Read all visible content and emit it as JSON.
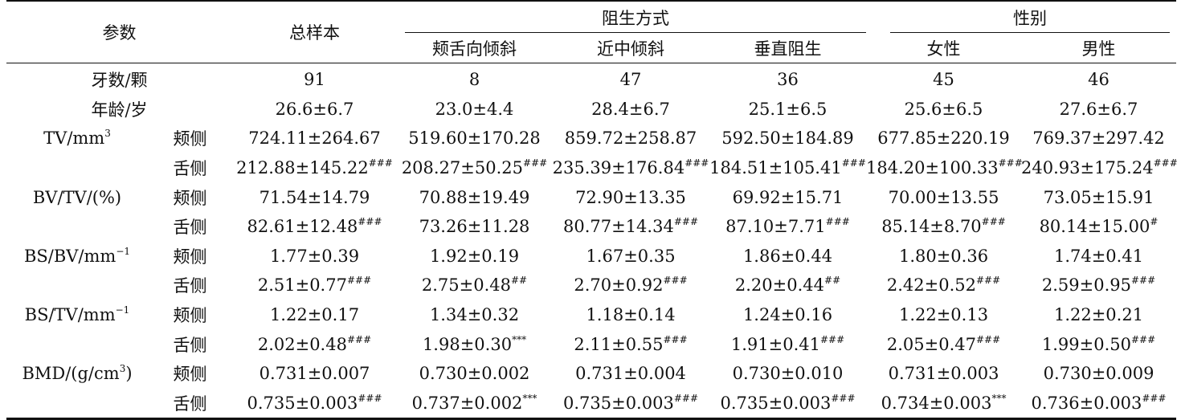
{
  "header": {
    "param": "参数",
    "total": "总样本",
    "group_mode": "阻生方式",
    "group_sex": "性别",
    "subcols": [
      "颊舌向倾斜",
      "近中倾斜",
      "垂直阻生",
      "女性",
      "男性"
    ]
  },
  "rows": [
    {
      "label": "牙数/颗",
      "cells": [
        "91",
        "8",
        "47",
        "36",
        "45",
        "46"
      ]
    },
    {
      "label": "年龄/岁",
      "cells": [
        "26.6±6.7",
        "23.0±4.4",
        "28.4±6.7",
        "25.1±6.5",
        "25.6±6.5",
        "27.6±6.7"
      ]
    }
  ],
  "metrics": [
    {
      "name": "TV/mm",
      "sup": "3",
      "rows": [
        {
          "side": "颊侧",
          "cells": [
            [
              "724.11±264.67",
              ""
            ],
            [
              "519.60±170.28",
              ""
            ],
            [
              "859.72±258.87",
              ""
            ],
            [
              "592.50±184.89",
              ""
            ],
            [
              "677.85±220.19",
              ""
            ],
            [
              "769.37±297.42",
              ""
            ]
          ]
        },
        {
          "side": "舌侧",
          "cells": [
            [
              "212.88±145.22",
              "###"
            ],
            [
              "208.27±50.25",
              "###"
            ],
            [
              "235.39±176.84",
              "###"
            ],
            [
              "184.51±105.41",
              "###"
            ],
            [
              "184.20±100.33",
              "###"
            ],
            [
              "240.93±175.24",
              "###"
            ]
          ]
        }
      ]
    },
    {
      "name": "BV/TV/(%)",
      "sup": "",
      "rows": [
        {
          "side": "颊侧",
          "cells": [
            [
              "71.54±14.79",
              ""
            ],
            [
              "70.88±19.49",
              ""
            ],
            [
              "72.90±13.35",
              ""
            ],
            [
              "69.92±15.71",
              ""
            ],
            [
              "70.00±13.55",
              ""
            ],
            [
              "73.05±15.91",
              ""
            ]
          ]
        },
        {
          "side": "舌侧",
          "cells": [
            [
              "82.61±12.48",
              "###"
            ],
            [
              "73.26±11.28",
              ""
            ],
            [
              "80.77±14.34",
              "###"
            ],
            [
              "87.10±7.71",
              "###"
            ],
            [
              "85.14±8.70",
              "###"
            ],
            [
              "80.14±15.00",
              "#"
            ]
          ]
        }
      ]
    },
    {
      "name": "BS/BV/mm",
      "sup": "−1",
      "rows": [
        {
          "side": "颊侧",
          "cells": [
            [
              "1.77±0.39",
              ""
            ],
            [
              "1.92±0.19",
              ""
            ],
            [
              "1.67±0.35",
              ""
            ],
            [
              "1.86±0.44",
              ""
            ],
            [
              "1.80±0.36",
              ""
            ],
            [
              "1.74±0.41",
              ""
            ]
          ]
        },
        {
          "side": "舌侧",
          "cells": [
            [
              "2.51±0.77",
              "###"
            ],
            [
              "2.75±0.48",
              "##"
            ],
            [
              "2.70±0.92",
              "###"
            ],
            [
              "2.20±0.44",
              "##"
            ],
            [
              "2.42±0.52",
              "###"
            ],
            [
              "2.59±0.95",
              "###"
            ]
          ]
        }
      ]
    },
    {
      "name": "BS/TV/mm",
      "sup": "−1",
      "rows": [
        {
          "side": "颊侧",
          "cells": [
            [
              "1.22±0.17",
              ""
            ],
            [
              "1.34±0.32",
              ""
            ],
            [
              "1.18±0.14",
              ""
            ],
            [
              "1.24±0.16",
              ""
            ],
            [
              "1.22±0.13",
              ""
            ],
            [
              "1.22±0.21",
              ""
            ]
          ]
        },
        {
          "side": "舌侧",
          "cells": [
            [
              "2.02±0.48",
              "###"
            ],
            [
              "1.98±0.30",
              "***"
            ],
            [
              "2.11±0.55",
              "###"
            ],
            [
              "1.91±0.41",
              "###"
            ],
            [
              "2.05±0.47",
              "###"
            ],
            [
              "1.99±0.50",
              "###"
            ]
          ]
        }
      ]
    },
    {
      "name": "BMD/(g/cm",
      "sup": "3",
      "suffix": ")",
      "rows": [
        {
          "side": "颊侧",
          "cells": [
            [
              "0.731±0.007",
              ""
            ],
            [
              "0.730±0.002",
              ""
            ],
            [
              "0.731±0.004",
              ""
            ],
            [
              "0.730±0.010",
              ""
            ],
            [
              "0.731±0.003",
              ""
            ],
            [
              "0.730±0.009",
              ""
            ]
          ]
        },
        {
          "side": "舌侧",
          "cells": [
            [
              "0.735±0.003",
              "###"
            ],
            [
              "0.737±0.002",
              "***"
            ],
            [
              "0.735±0.003",
              "###"
            ],
            [
              "0.735±0.003",
              "###"
            ],
            [
              "0.734±0.003",
              "***"
            ],
            [
              "0.736±0.003",
              "###"
            ]
          ]
        }
      ]
    }
  ]
}
